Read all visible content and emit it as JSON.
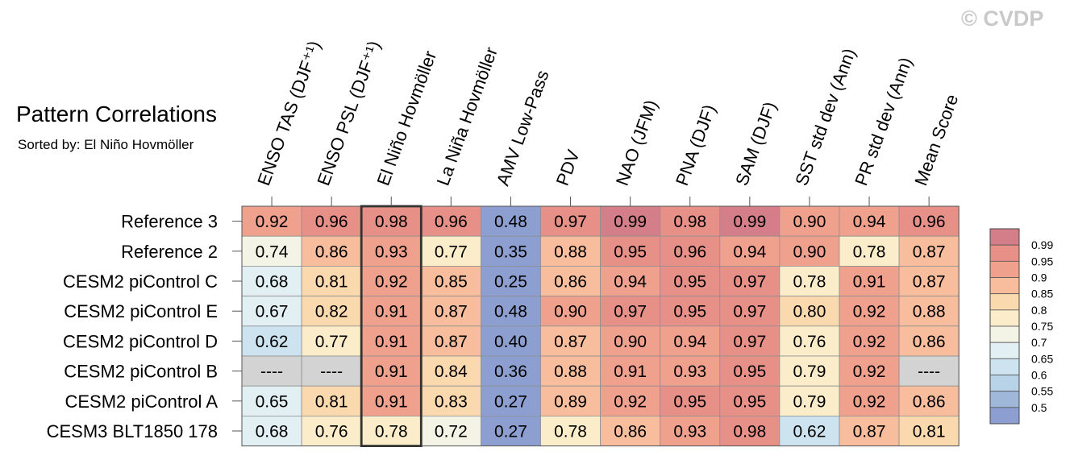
{
  "chart_data": {
    "type": "heatmap",
    "title": "Pattern Correlations",
    "subtitle": "Sorted by: El Niño Hovmöller",
    "watermark": "© CVDP",
    "highlight_column": "El Niño Hovmöller",
    "columns": [
      "ENSO TAS (DJF⁺¹)",
      "ENSO PSL (DJF⁺¹)",
      "El Niño Hovmöller",
      "La Niña Hovmöller",
      "AMV Low-Pass",
      "PDV",
      "NAO (JFM)",
      "PNA (DJF)",
      "SAM (DJF)",
      "SST std dev (Ann)",
      "PR std dev (Ann)",
      "Mean Score"
    ],
    "rows": [
      {
        "label": "Reference 3",
        "values": [
          "0.92",
          "0.96",
          "0.98",
          "0.96",
          "0.48",
          "0.97",
          "0.99",
          "0.98",
          "0.99",
          "0.90",
          "0.94",
          "0.96"
        ]
      },
      {
        "label": "Reference 2",
        "values": [
          "0.74",
          "0.86",
          "0.93",
          "0.77",
          "0.35",
          "0.88",
          "0.95",
          "0.96",
          "0.94",
          "0.90",
          "0.78",
          "0.87"
        ]
      },
      {
        "label": "CESM2 piControl C",
        "values": [
          "0.68",
          "0.81",
          "0.92",
          "0.85",
          "0.25",
          "0.86",
          "0.94",
          "0.95",
          "0.97",
          "0.78",
          "0.91",
          "0.87"
        ]
      },
      {
        "label": "CESM2 piControl E",
        "values": [
          "0.67",
          "0.82",
          "0.91",
          "0.87",
          "0.48",
          "0.90",
          "0.97",
          "0.95",
          "0.97",
          "0.80",
          "0.92",
          "0.88"
        ]
      },
      {
        "label": "CESM2 piControl D",
        "values": [
          "0.62",
          "0.77",
          "0.91",
          "0.87",
          "0.40",
          "0.87",
          "0.90",
          "0.94",
          "0.97",
          "0.76",
          "0.92",
          "0.86"
        ]
      },
      {
        "label": "CESM2 piControl B",
        "values": [
          "----",
          "----",
          "0.91",
          "0.84",
          "0.36",
          "0.88",
          "0.91",
          "0.93",
          "0.95",
          "0.79",
          "0.92",
          "----"
        ]
      },
      {
        "label": "CESM2 piControl A",
        "values": [
          "0.65",
          "0.81",
          "0.91",
          "0.83",
          "0.27",
          "0.89",
          "0.92",
          "0.95",
          "0.95",
          "0.79",
          "0.92",
          "0.86"
        ]
      },
      {
        "label": "CESM3 BLT1850 178",
        "values": [
          "0.68",
          "0.76",
          "0.78",
          "0.72",
          "0.27",
          "0.78",
          "0.86",
          "0.93",
          "0.98",
          "0.62",
          "0.87",
          "0.81"
        ]
      }
    ],
    "legend": {
      "labels": [
        "0.99",
        "0.95",
        "0.9",
        "0.85",
        "0.8",
        "0.75",
        "0.7",
        "0.65",
        "0.6",
        "0.55",
        "0.5"
      ],
      "boundaries": [
        1.0,
        0.99,
        0.95,
        0.9,
        0.85,
        0.8,
        0.75,
        0.7,
        0.65,
        0.6,
        0.55,
        0.5,
        0.0
      ],
      "colors": [
        "#d47e89",
        "#e79088",
        "#f0a18e",
        "#f7bd9c",
        "#fbd9ae",
        "#fbedc9",
        "#f3f3e6",
        "#e2eff3",
        "#cde4f0",
        "#b8d2e7",
        "#9fb8da",
        "#8c9fd0"
      ]
    },
    "missing_color": "#d3d3d3"
  }
}
